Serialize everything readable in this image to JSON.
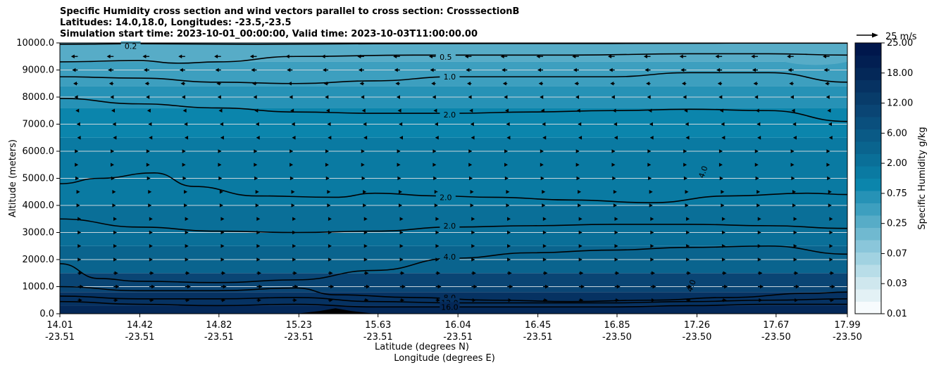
{
  "chart_data": {
    "type": "contour",
    "title_lines": [
      "Specific Humidity cross section and wind vectors parallel to cross section: CrosssectionB",
      "Latitudes: 14.0,18.0, Longitudes: -23.5,-23.5",
      "Simulation start time: 2023-10-01_00:00:00, Valid time: 2023-10-03T11:00:00.00"
    ],
    "xlabel_lat": "Latitude (degrees N)",
    "xlabel_lon": "Longitude (degrees E)",
    "ylabel": "Altitude (meters)",
    "ylim": [
      0,
      10000
    ],
    "yticks": [
      0,
      1000,
      2000,
      3000,
      4000,
      5000,
      6000,
      7000,
      8000,
      9000,
      10000
    ],
    "ytick_labels": [
      "0.0",
      "1000.0",
      "2000.0",
      "3000.0",
      "4000.0",
      "5000.0",
      "6000.0",
      "7000.0",
      "8000.0",
      "9000.0",
      "10000.0"
    ],
    "xtick_lat": [
      "14.01",
      "14.42",
      "14.82",
      "15.23",
      "15.63",
      "16.04",
      "16.45",
      "16.85",
      "17.26",
      "17.67",
      "17.99"
    ],
    "xtick_lon": [
      "-23.51",
      "-23.51",
      "-23.51",
      "-23.51",
      "-23.51",
      "-23.51",
      "-23.51",
      "-23.50",
      "-23.50",
      "-23.50",
      "-23.50"
    ],
    "xtick_fraction": [
      0.0,
      0.1015,
      0.202,
      0.3035,
      0.404,
      0.5055,
      0.607,
      0.7075,
      0.809,
      0.9095,
      1.0
    ],
    "colorbar": {
      "label": "Specific Humidity g/kg",
      "tick_labels": [
        "0.01",
        "0.03",
        "0.07",
        "0.25",
        "0.75",
        "2.00",
        "6.00",
        "12.00",
        "18.00",
        "25.00"
      ],
      "colors": [
        "#f7fbfd",
        "#e3f1f5",
        "#cfe7ee",
        "#b8dde8",
        "#a1d2e1",
        "#8ac6da",
        "#70b9d0",
        "#57acc7",
        "#3d9fbf",
        "#2692b6",
        "#0b85ac",
        "#0a7aa2",
        "#0a6f98",
        "#0a648e",
        "#0a5a86",
        "#0a4f7d",
        "#0a4574",
        "#083c6a",
        "#063262",
        "#042858",
        "#021f52",
        "#00174c"
      ],
      "mid_tick_labels": [
        "2.00",
        "6.00",
        "12.00"
      ]
    },
    "filled_bands_km": [
      {
        "bottom": 0.0,
        "top": 0.3,
        "q": 18.0
      },
      {
        "bottom": 0.3,
        "top": 0.8,
        "q": 16.0
      },
      {
        "bottom": 0.8,
        "top": 1.5,
        "q": 12.0
      },
      {
        "bottom": 1.5,
        "top": 2.5,
        "q": 6.0
      },
      {
        "bottom": 2.5,
        "top": 4.0,
        "q": 4.0
      },
      {
        "bottom": 4.0,
        "top": 6.5,
        "q": 3.0
      },
      {
        "bottom": 6.5,
        "top": 7.6,
        "q": 2.5
      },
      {
        "bottom": 7.6,
        "top": 8.4,
        "q": 1.5
      },
      {
        "bottom": 8.4,
        "top": 9.3,
        "q": 1.0
      },
      {
        "bottom": 9.3,
        "top": 10.0,
        "q": 0.6
      }
    ],
    "contours": [
      {
        "level": "0.2",
        "points_km": [
          [
            0.0,
            9.95
          ],
          [
            0.1,
            9.97
          ],
          [
            0.25,
            9.95
          ],
          [
            0.4,
            9.97
          ],
          [
            0.55,
            9.98
          ],
          [
            0.7,
            9.98
          ],
          [
            0.85,
            9.99
          ],
          [
            1.0,
            9.99
          ]
        ],
        "label": "0.2",
        "label_at": [
          0.09,
          9.88
        ]
      },
      {
        "level": "0.5",
        "points_km": [
          [
            0.0,
            9.3
          ],
          [
            0.1,
            9.35
          ],
          [
            0.15,
            9.25
          ],
          [
            0.2,
            9.3
          ],
          [
            0.3,
            9.5
          ],
          [
            0.45,
            9.55
          ],
          [
            0.55,
            9.55
          ],
          [
            0.65,
            9.55
          ],
          [
            0.8,
            9.6
          ],
          [
            0.9,
            9.6
          ],
          [
            1.0,
            9.55
          ]
        ],
        "label": "0.5",
        "label_at": [
          0.49,
          9.48
        ]
      },
      {
        "level": "1.0",
        "points_km": [
          [
            0.0,
            8.75
          ],
          [
            0.1,
            8.7
          ],
          [
            0.2,
            8.55
          ],
          [
            0.3,
            8.5
          ],
          [
            0.4,
            8.6
          ],
          [
            0.5,
            8.75
          ],
          [
            0.6,
            8.75
          ],
          [
            0.7,
            8.75
          ],
          [
            0.8,
            8.9
          ],
          [
            0.9,
            8.9
          ],
          [
            1.0,
            8.55
          ]
        ],
        "label": "1.0",
        "label_at": [
          0.495,
          8.75
        ]
      },
      {
        "level": "2.0",
        "points_km": [
          [
            0.0,
            7.95
          ],
          [
            0.1,
            7.75
          ],
          [
            0.2,
            7.6
          ],
          [
            0.3,
            7.45
          ],
          [
            0.4,
            7.4
          ],
          [
            0.5,
            7.4
          ],
          [
            0.6,
            7.45
          ],
          [
            0.7,
            7.5
          ],
          [
            0.8,
            7.55
          ],
          [
            0.9,
            7.5
          ],
          [
            1.0,
            7.1
          ]
        ],
        "label": "2.0",
        "label_at": [
          0.495,
          7.35
        ]
      },
      {
        "level": "2.0",
        "points_km": [
          [
            0.0,
            4.8
          ],
          [
            0.05,
            5.0
          ],
          [
            0.12,
            5.2
          ],
          [
            0.17,
            4.7
          ],
          [
            0.25,
            4.35
          ],
          [
            0.35,
            4.3
          ],
          [
            0.4,
            4.45
          ],
          [
            0.48,
            4.35
          ],
          [
            0.55,
            4.3
          ],
          [
            0.65,
            4.2
          ],
          [
            0.75,
            4.1
          ],
          [
            0.85,
            4.35
          ],
          [
            0.95,
            4.45
          ],
          [
            1.0,
            4.4
          ]
        ],
        "label": "2.0",
        "label_at": [
          0.49,
          4.3
        ]
      },
      {
        "level": "2.0",
        "points_km": [
          [
            0.0,
            3.5
          ],
          [
            0.1,
            3.2
          ],
          [
            0.2,
            3.05
          ],
          [
            0.3,
            3.0
          ],
          [
            0.4,
            3.05
          ],
          [
            0.5,
            3.2
          ],
          [
            0.6,
            3.25
          ],
          [
            0.7,
            3.3
          ],
          [
            0.8,
            3.3
          ],
          [
            0.9,
            3.25
          ],
          [
            1.0,
            3.15
          ]
        ],
        "label": "2.0",
        "label_at": [
          0.495,
          3.25
        ]
      },
      {
        "level": "4.0",
        "points_km": [
          [
            0.0,
            1.85
          ],
          [
            0.05,
            1.3
          ],
          [
            0.1,
            1.2
          ],
          [
            0.2,
            1.15
          ],
          [
            0.3,
            1.25
          ],
          [
            0.4,
            1.6
          ],
          [
            0.5,
            2.05
          ],
          [
            0.6,
            2.25
          ],
          [
            0.7,
            2.35
          ],
          [
            0.8,
            2.45
          ],
          [
            0.9,
            2.5
          ],
          [
            1.0,
            2.2
          ]
        ],
        "label": "4.0",
        "label_at": [
          0.495,
          2.1
        ]
      },
      {
        "level": "8.0",
        "points_km": [
          [
            0.0,
            1.0
          ],
          [
            0.1,
            0.85
          ],
          [
            0.2,
            0.85
          ],
          [
            0.3,
            0.95
          ],
          [
            0.35,
            0.7
          ],
          [
            0.45,
            0.6
          ],
          [
            0.55,
            0.5
          ],
          [
            0.65,
            0.45
          ],
          [
            0.75,
            0.5
          ],
          [
            0.85,
            0.6
          ],
          [
            0.95,
            0.75
          ],
          [
            1.0,
            0.8
          ]
        ],
        "label": "8.0",
        "label_at": [
          0.495,
          0.6
        ]
      },
      {
        "level": "12.0",
        "points_km": [
          [
            0.0,
            0.65
          ],
          [
            0.1,
            0.55
          ],
          [
            0.2,
            0.55
          ],
          [
            0.3,
            0.6
          ],
          [
            0.4,
            0.45
          ],
          [
            0.5,
            0.4
          ],
          [
            0.6,
            0.4
          ],
          [
            0.7,
            0.4
          ],
          [
            0.8,
            0.45
          ],
          [
            0.9,
            0.5
          ],
          [
            1.0,
            0.55
          ]
        ],
        "label": "12.0",
        "label_at": [
          0.495,
          0.4
        ]
      },
      {
        "level": "16.0",
        "points_km": [
          [
            0.0,
            0.45
          ],
          [
            0.1,
            0.35
          ],
          [
            0.2,
            0.3
          ],
          [
            0.3,
            0.35
          ],
          [
            0.4,
            0.25
          ],
          [
            0.5,
            0.25
          ],
          [
            0.6,
            0.25
          ],
          [
            0.7,
            0.25
          ],
          [
            0.8,
            0.3
          ],
          [
            0.9,
            0.35
          ],
          [
            1.0,
            0.35
          ]
        ],
        "label": "16.0",
        "label_at": [
          0.495,
          0.25
        ]
      }
    ],
    "rotated_labels": [
      {
        "text": "4.0",
        "at": [
          0.82,
          5.2
        ],
        "angle": -70
      },
      {
        "text": "4.0",
        "at": [
          0.805,
          1.0
        ],
        "angle": -70
      }
    ],
    "wind_quiver": {
      "reference_label": "25 m/s",
      "reference_speed_ms": 25,
      "rows_km": [
        9.5,
        9.0,
        8.5,
        8.0,
        7.5,
        7.0,
        6.5,
        6.0,
        5.5,
        5.0,
        4.5,
        4.0,
        3.5,
        3.0,
        2.5,
        2.0,
        1.5,
        1.0,
        0.5
      ],
      "row_u_ms": [
        -6,
        -5,
        -4,
        -3,
        -2,
        -1,
        -0.5,
        0.5,
        0.5,
        1,
        2,
        2,
        3,
        3,
        3,
        3,
        4,
        5,
        4
      ],
      "columns": 22
    },
    "terrain": [
      [
        0.3,
        0.0
      ],
      [
        0.33,
        0.1
      ],
      [
        0.35,
        0.2
      ],
      [
        0.37,
        0.1
      ],
      [
        0.4,
        0.0
      ]
    ]
  }
}
